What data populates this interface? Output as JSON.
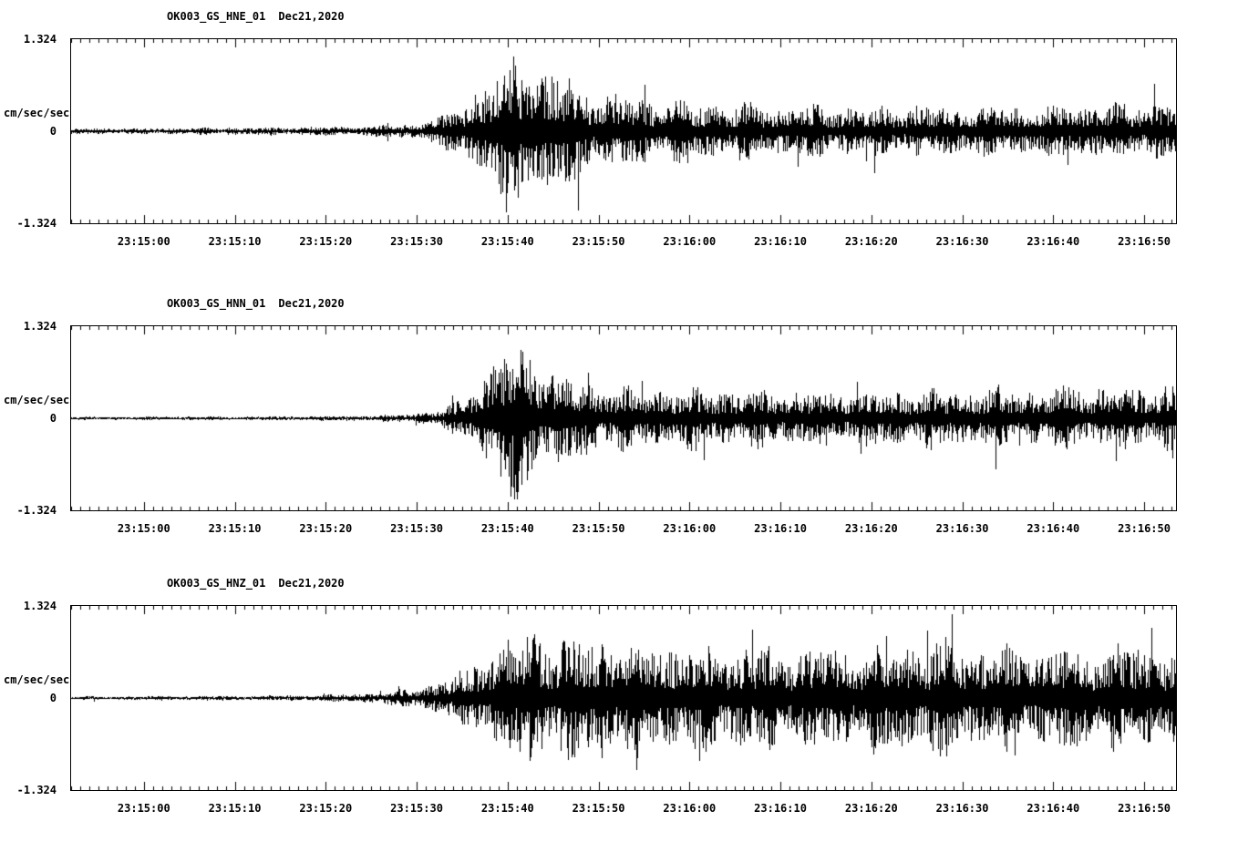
{
  "page": {
    "background": "#ffffff",
    "trace_color": "#000000"
  },
  "chart_data": [
    {
      "type": "line",
      "station": "OK003_GS_HNE_01",
      "date": "Dec21,2020",
      "ylabel": "cm/sec/sec",
      "y_ticks": [
        "1.324",
        "0",
        "-1.324"
      ],
      "ylim": [
        -1.324,
        1.324
      ],
      "x_ticks": [
        "23:15:00",
        "23:15:10",
        "23:15:20",
        "23:15:30",
        "23:15:40",
        "23:15:50",
        "23:16:00",
        "23:16:10",
        "23:16:20",
        "23:16:30",
        "23:16:40",
        "23:16:50"
      ],
      "x_start": "23:14:52",
      "x_end": "23:16:54",
      "x_first_tick_offset_seconds": 8,
      "x_tick_interval_seconds": 10,
      "duration_seconds": 121.5,
      "seed": 11,
      "amplitude_envelope": [
        [
          0,
          0.04
        ],
        [
          15,
          0.045
        ],
        [
          25,
          0.055
        ],
        [
          32,
          0.07
        ],
        [
          37,
          0.1
        ],
        [
          40,
          0.18
        ],
        [
          42,
          0.3
        ],
        [
          44,
          0.5
        ],
        [
          46,
          0.8
        ],
        [
          48,
          1.0
        ],
        [
          50,
          1.05
        ],
        [
          52,
          0.9
        ],
        [
          54,
          0.78
        ],
        [
          56,
          0.62
        ],
        [
          58,
          0.52
        ],
        [
          62,
          0.46
        ],
        [
          68,
          0.4
        ],
        [
          75,
          0.36
        ],
        [
          85,
          0.34
        ],
        [
          95,
          0.34
        ],
        [
          105,
          0.36
        ],
        [
          112,
          0.38
        ],
        [
          121.5,
          0.4
        ]
      ]
    },
    {
      "type": "line",
      "station": "OK003_GS_HNN_01",
      "date": "Dec21,2020",
      "ylabel": "cm/sec/sec",
      "y_ticks": [
        "1.324",
        "0",
        "-1.324"
      ],
      "ylim": [
        -1.324,
        1.324
      ],
      "x_ticks": [
        "23:15:00",
        "23:15:10",
        "23:15:20",
        "23:15:30",
        "23:15:40",
        "23:15:50",
        "23:16:00",
        "23:16:10",
        "23:16:20",
        "23:16:30",
        "23:16:40",
        "23:16:50"
      ],
      "x_start": "23:14:52",
      "x_end": "23:16:54",
      "x_first_tick_offset_seconds": 8,
      "x_tick_interval_seconds": 10,
      "duration_seconds": 121.5,
      "seed": 22,
      "amplitude_envelope": [
        [
          0,
          0.02
        ],
        [
          20,
          0.025
        ],
        [
          30,
          0.03
        ],
        [
          36,
          0.05
        ],
        [
          40,
          0.1
        ],
        [
          43,
          0.25
        ],
        [
          45,
          0.55
        ],
        [
          47,
          0.95
        ],
        [
          48,
          1.15
        ],
        [
          50,
          1.0
        ],
        [
          52,
          0.72
        ],
        [
          55,
          0.55
        ],
        [
          58,
          0.47
        ],
        [
          62,
          0.42
        ],
        [
          70,
          0.4
        ],
        [
          80,
          0.38
        ],
        [
          90,
          0.38
        ],
        [
          100,
          0.4
        ],
        [
          110,
          0.42
        ],
        [
          121.5,
          0.44
        ]
      ]
    },
    {
      "type": "line",
      "station": "OK003_GS_HNZ_01",
      "date": "Dec21,2020",
      "ylabel": "cm/sec/sec",
      "y_ticks": [
        "1.324",
        "0",
        "-1.324"
      ],
      "ylim": [
        -1.324,
        1.324
      ],
      "x_ticks": [
        "23:15:00",
        "23:15:10",
        "23:15:20",
        "23:15:30",
        "23:15:40",
        "23:15:50",
        "23:16:00",
        "23:16:10",
        "23:16:20",
        "23:16:30",
        "23:16:40",
        "23:16:50"
      ],
      "x_start": "23:14:52",
      "x_end": "23:16:54",
      "x_first_tick_offset_seconds": 8,
      "x_tick_interval_seconds": 10,
      "duration_seconds": 121.5,
      "seed": 33,
      "amplitude_envelope": [
        [
          0,
          0.02
        ],
        [
          20,
          0.03
        ],
        [
          30,
          0.05
        ],
        [
          34,
          0.08
        ],
        [
          38,
          0.14
        ],
        [
          41,
          0.25
        ],
        [
          44,
          0.45
        ],
        [
          46,
          0.65
        ],
        [
          48,
          0.8
        ],
        [
          52,
          0.88
        ],
        [
          56,
          0.82
        ],
        [
          62,
          0.78
        ],
        [
          70,
          0.72
        ],
        [
          78,
          0.68
        ],
        [
          86,
          0.72
        ],
        [
          94,
          0.76
        ],
        [
          102,
          0.7
        ],
        [
          110,
          0.74
        ],
        [
          121.5,
          0.72
        ]
      ]
    }
  ]
}
